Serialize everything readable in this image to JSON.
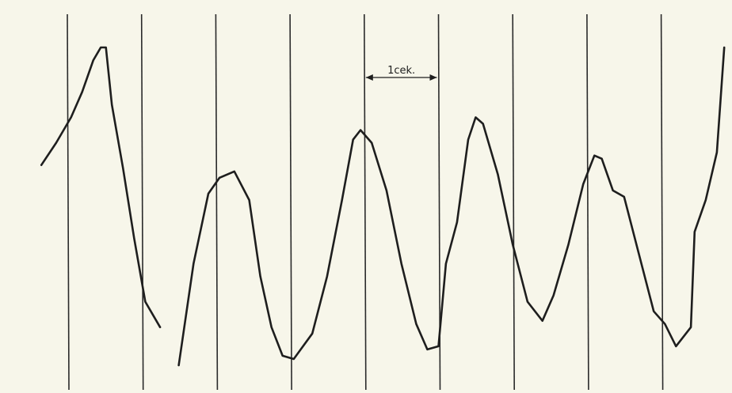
{
  "chart_data": {
    "type": "line",
    "title": "",
    "xlabel": "",
    "ylabel": "",
    "grid": false,
    "time_unit": "s",
    "scale_annotation": {
      "label": "1cek.",
      "duration": 1
    },
    "time_markers": [
      0,
      1,
      2,
      3,
      4,
      5,
      6,
      7,
      8
    ],
    "xlim": [
      -0.85,
      8.85
    ],
    "ylim": [
      0,
      1
    ],
    "series": [
      {
        "points": [
          [
            -0.35,
            0.63
          ],
          [
            -0.15,
            0.7
          ],
          [
            0.05,
            0.78
          ],
          [
            0.2,
            0.86
          ],
          [
            0.35,
            0.96
          ],
          [
            0.45,
            1.0
          ],
          [
            0.52,
            1.0
          ],
          [
            0.6,
            0.82
          ],
          [
            0.75,
            0.62
          ],
          [
            0.9,
            0.4
          ],
          [
            1.05,
            0.2
          ],
          [
            1.25,
            0.12
          ]
        ]
      },
      {
        "points": [
          [
            1.5,
            0.0
          ],
          [
            1.7,
            0.32
          ],
          [
            1.9,
            0.54
          ],
          [
            2.05,
            0.59
          ],
          [
            2.25,
            0.61
          ],
          [
            2.45,
            0.52
          ],
          [
            2.6,
            0.28
          ],
          [
            2.75,
            0.12
          ],
          [
            2.9,
            0.03
          ],
          [
            3.05,
            0.02
          ],
          [
            3.3,
            0.1
          ],
          [
            3.5,
            0.28
          ],
          [
            3.7,
            0.52
          ],
          [
            3.85,
            0.71
          ],
          [
            3.95,
            0.74
          ],
          [
            4.1,
            0.7
          ],
          [
            4.3,
            0.55
          ],
          [
            4.5,
            0.32
          ],
          [
            4.7,
            0.13
          ],
          [
            4.85,
            0.05
          ],
          [
            5.0,
            0.06
          ],
          [
            5.1,
            0.32
          ],
          [
            5.25,
            0.45
          ],
          [
            5.4,
            0.71
          ],
          [
            5.5,
            0.78
          ],
          [
            5.6,
            0.76
          ],
          [
            5.8,
            0.6
          ],
          [
            6.0,
            0.38
          ],
          [
            6.2,
            0.2
          ],
          [
            6.4,
            0.14
          ],
          [
            6.55,
            0.22
          ],
          [
            6.75,
            0.38
          ],
          [
            6.95,
            0.57
          ],
          [
            7.1,
            0.66
          ],
          [
            7.2,
            0.65
          ],
          [
            7.35,
            0.55
          ],
          [
            7.5,
            0.53
          ],
          [
            7.7,
            0.35
          ],
          [
            7.9,
            0.17
          ],
          [
            8.05,
            0.13
          ],
          [
            8.2,
            0.06
          ],
          [
            8.4,
            0.12
          ],
          [
            8.45,
            0.42
          ],
          [
            8.6,
            0.52
          ],
          [
            8.75,
            0.67
          ],
          [
            8.85,
            1.0
          ]
        ]
      }
    ]
  }
}
